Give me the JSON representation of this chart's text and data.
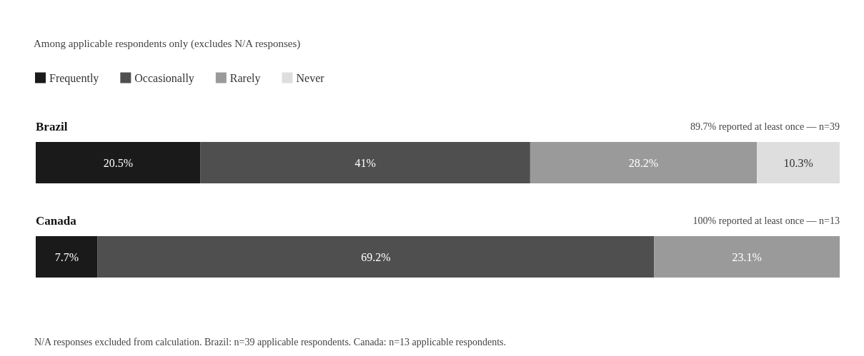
{
  "chart_data": {
    "type": "bar",
    "orientation": "horizontal",
    "stacked": true,
    "title": "Among applicable respondents only (excludes N/A responses)",
    "categories": [
      "Brazil",
      "Canada"
    ],
    "series": [
      {
        "name": "Frequently",
        "color": "#1a1a1a",
        "values": [
          20.5,
          7.7
        ],
        "value_labels": [
          "20.5%",
          "7.7%"
        ]
      },
      {
        "name": "Occasionally",
        "color": "#4f4f4f",
        "values": [
          41,
          69.2
        ],
        "value_labels": [
          "41%",
          "69.2%"
        ]
      },
      {
        "name": "Rarely",
        "color": "#9a9a9a",
        "values": [
          28.2,
          23.1
        ],
        "value_labels": [
          "28.2%",
          "23.1%"
        ]
      },
      {
        "name": "Never",
        "color": "#dedede",
        "values": [
          10.3,
          0
        ],
        "value_labels": [
          "10.3%",
          null
        ]
      }
    ],
    "xlim": [
      0,
      100
    ],
    "legend": "top left",
    "tick_labels": "y",
    "annotations": [
      "89.7% reported at least once — n=39",
      "100% reported at least once — n=13",
      "N/A responses excluded from calculation. Brazil: n=39 applicable respondents. Canada: n=13 applicable respondents."
    ]
  }
}
